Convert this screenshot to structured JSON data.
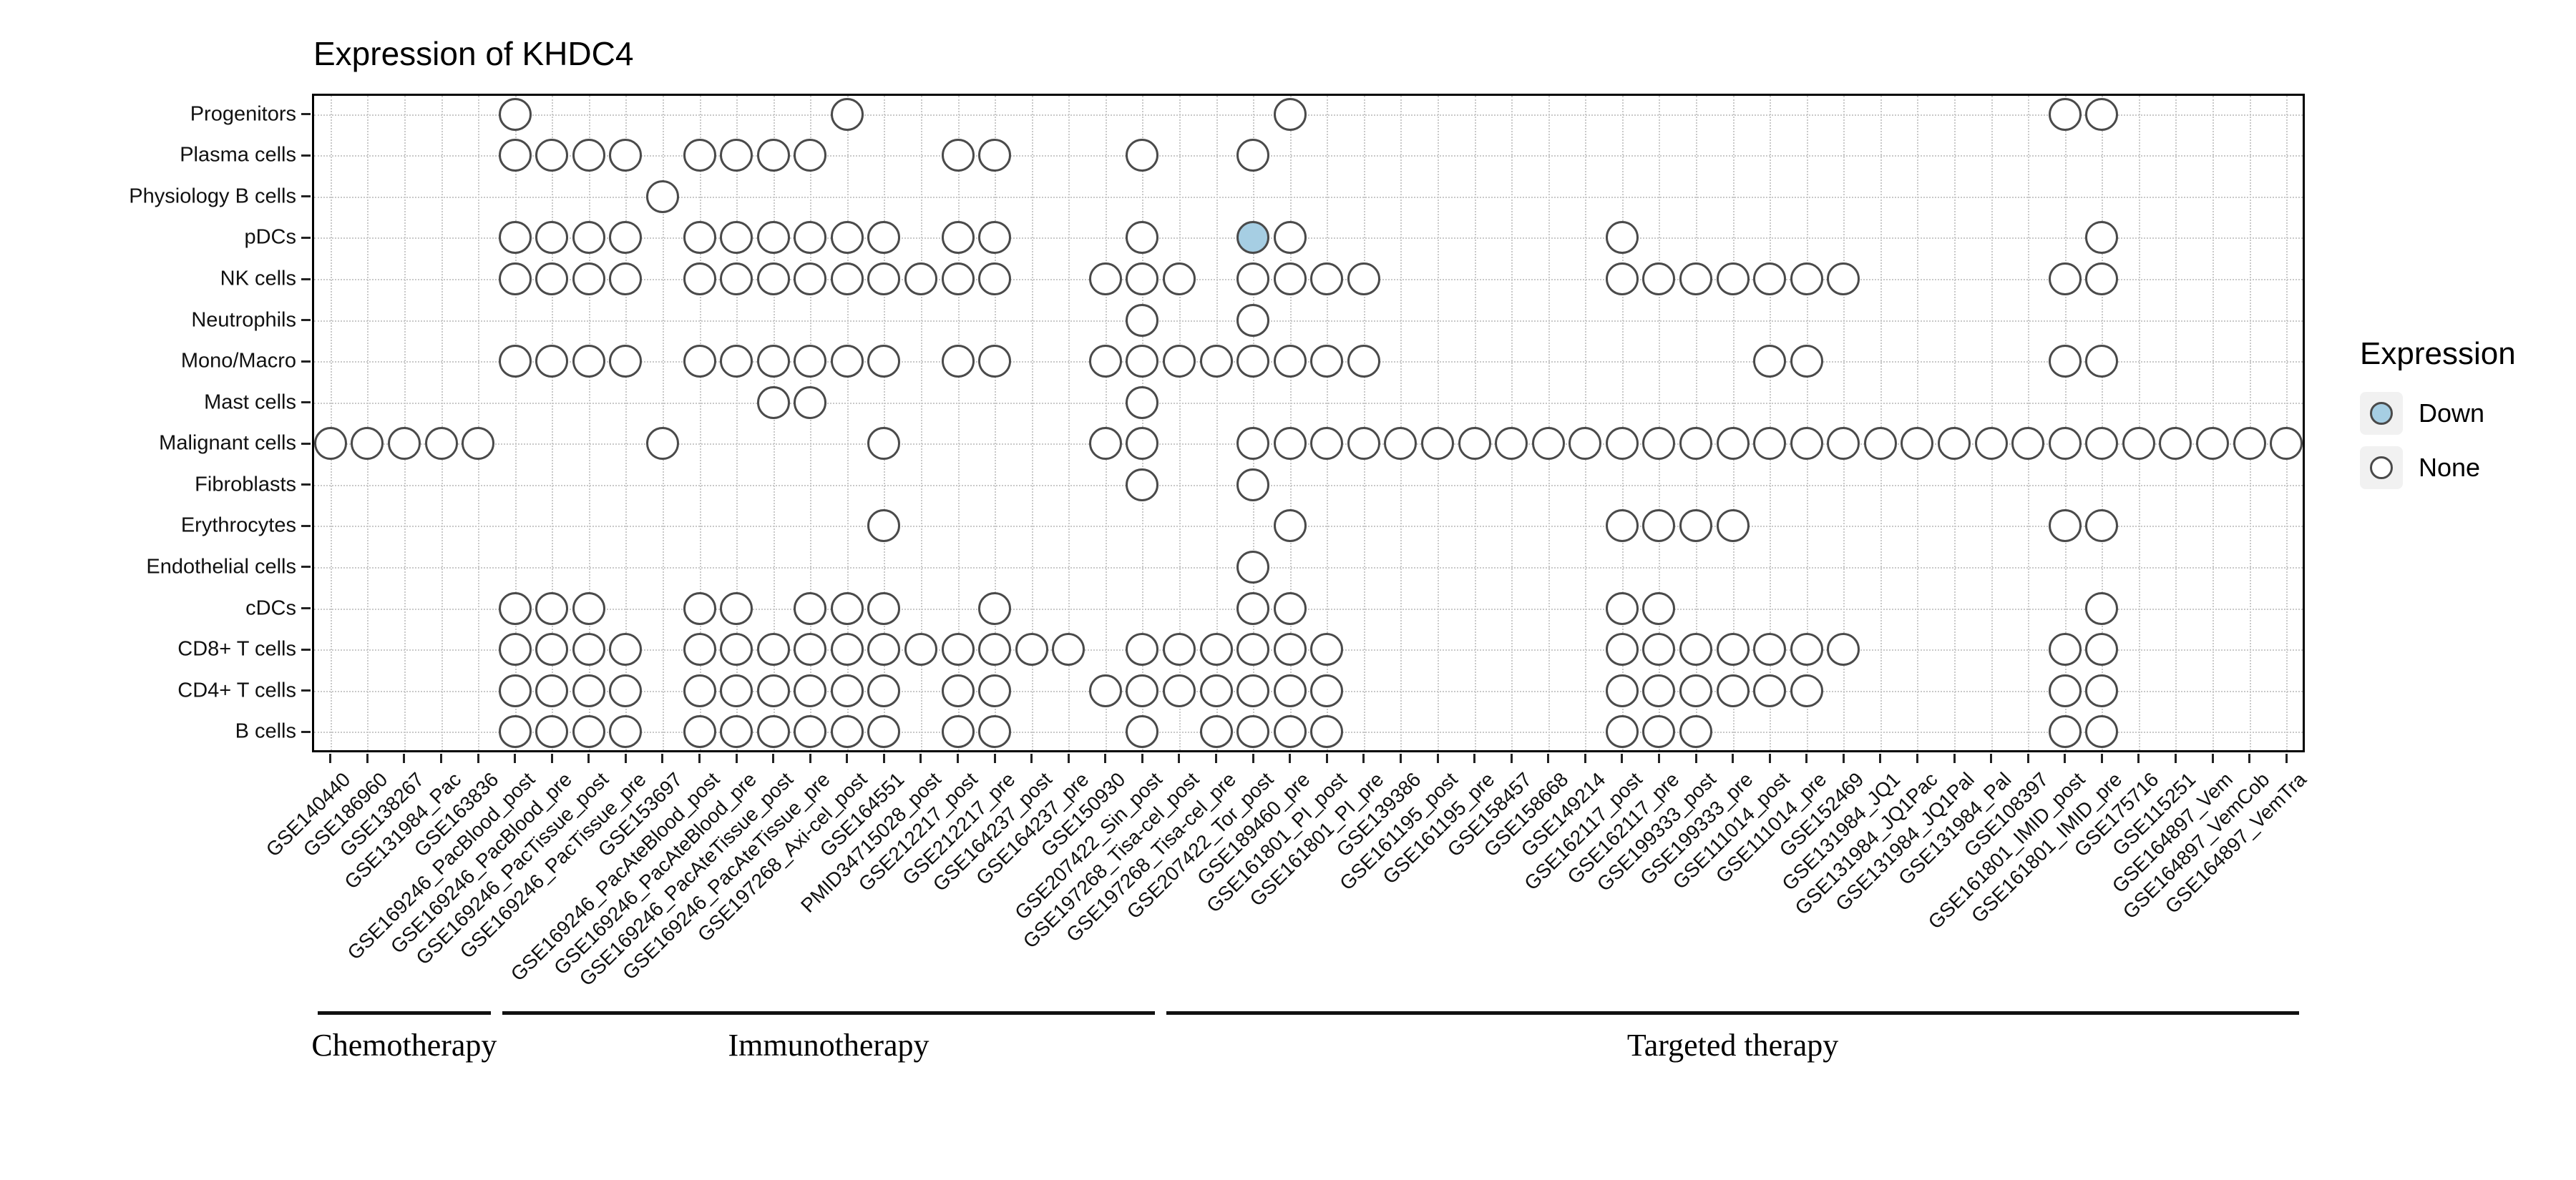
{
  "chart_data": {
    "type": "dot-matrix",
    "title": "Expression of KHDC4",
    "legend": {
      "title": "Expression",
      "items": [
        {
          "label": "Down",
          "color": "#a6cee3"
        },
        {
          "label": "None",
          "color": "#ffffff"
        }
      ]
    },
    "rows": [
      "Progenitors",
      "Plasma cells",
      "Physiology B cells",
      "pDCs",
      "NK cells",
      "Neutrophils",
      "Mono/Macro",
      "Mast cells",
      "Malignant cells",
      "Fibroblasts",
      "Erythrocytes",
      "Endothelial cells",
      "cDCs",
      "CD8+ T cells",
      "CD4+ T cells",
      "B cells"
    ],
    "columns": [
      "GSE140440",
      "GSE186960",
      "GSE138267",
      "GSE131984_Pac",
      "GSE163836",
      "GSE169246_PacBlood_post",
      "GSE169246_PacBlood_pre",
      "GSE169246_PacTissue_post",
      "GSE169246_PacTissue_pre",
      "GSE153697",
      "GSE169246_PacAteBlood_post",
      "GSE169246_PacAteBlood_pre",
      "GSE169246_PacAteTissue_post",
      "GSE169246_PacAteTissue_pre",
      "GSE197268_Axi-cel_post",
      "GSE164551",
      "PMID34715028_post",
      "GSE212217_post",
      "GSE212217_pre",
      "GSE164237_post",
      "GSE164237_pre",
      "GSE150930",
      "GSE207422_Sin_post",
      "GSE197268_Tisa-cel_post",
      "GSE197268_Tisa-cel_pre",
      "GSE207422_Tor_post",
      "GSE189460_pre",
      "GSE161801_PI_post",
      "GSE161801_PI_pre",
      "GSE139386",
      "GSE161195_post",
      "GSE161195_pre",
      "GSE158457",
      "GSE158668",
      "GSE149214",
      "GSE162117_post",
      "GSE162117_pre",
      "GSE199333_post",
      "GSE199333_pre",
      "GSE111014_post",
      "GSE111014_pre",
      "GSE152469",
      "GSE131984_JQ1",
      "GSE131984_JQ1Pac",
      "GSE131984_JQ1Pal",
      "GSE131984_Pal",
      "GSE108397",
      "GSE161801_IMID_post",
      "GSE161801_IMID_pre",
      "GSE175716",
      "GSE115251",
      "GSE164897_Vem",
      "GSE164897_VemCob",
      "GSE164897_VemTra"
    ],
    "groups": [
      {
        "label": "Chemotherapy",
        "col_start": 1,
        "col_end": 5
      },
      {
        "label": "Immunotherapy",
        "col_start": 6,
        "col_end": 23
      },
      {
        "label": "Targeted therapy",
        "col_start": 24,
        "col_end": 54
      }
    ],
    "cells": {
      "Progenitors": [
        6,
        15,
        27,
        48,
        49
      ],
      "Plasma cells": [
        6,
        7,
        8,
        9,
        11,
        12,
        13,
        14,
        18,
        19,
        23,
        26
      ],
      "Physiology B cells": [
        10
      ],
      "pDCs": [
        6,
        7,
        8,
        9,
        11,
        12,
        13,
        14,
        15,
        16,
        18,
        19,
        23,
        26,
        27,
        36,
        49
      ],
      "NK cells": [
        6,
        7,
        8,
        9,
        11,
        12,
        13,
        14,
        15,
        16,
        17,
        18,
        19,
        22,
        23,
        24,
        26,
        27,
        28,
        29,
        36,
        37,
        38,
        39,
        40,
        41,
        42,
        48,
        49
      ],
      "Neutrophils": [
        23,
        26
      ],
      "Mono/Macro": [
        6,
        7,
        8,
        9,
        11,
        12,
        13,
        14,
        15,
        16,
        18,
        19,
        22,
        23,
        24,
        25,
        26,
        27,
        28,
        29,
        40,
        41,
        48,
        49
      ],
      "Mast cells": [
        13,
        14,
        23
      ],
      "Malignant cells": [
        1,
        2,
        3,
        4,
        5,
        10,
        16,
        22,
        23,
        26,
        27,
        28,
        29,
        30,
        31,
        32,
        33,
        34,
        35,
        36,
        37,
        38,
        39,
        40,
        41,
        42,
        43,
        44,
        45,
        46,
        47,
        48,
        49,
        50,
        51,
        52,
        53,
        54
      ],
      "Fibroblasts": [
        23,
        26
      ],
      "Erythrocytes": [
        16,
        27,
        36,
        37,
        38,
        39,
        48,
        49
      ],
      "Endothelial cells": [
        26
      ],
      "cDCs": [
        6,
        7,
        8,
        11,
        12,
        14,
        15,
        16,
        19,
        26,
        27,
        36,
        37,
        49
      ],
      "CD8+ T cells": [
        6,
        7,
        8,
        9,
        11,
        12,
        13,
        14,
        15,
        16,
        17,
        18,
        19,
        20,
        21,
        23,
        24,
        25,
        26,
        27,
        28,
        36,
        37,
        38,
        39,
        40,
        41,
        42,
        48,
        49
      ],
      "CD4+ T cells": [
        6,
        7,
        8,
        9,
        11,
        12,
        13,
        14,
        15,
        16,
        18,
        19,
        22,
        23,
        24,
        25,
        26,
        27,
        28,
        36,
        37,
        38,
        39,
        40,
        41,
        48,
        49
      ],
      "B cells": [
        6,
        7,
        8,
        9,
        11,
        12,
        13,
        14,
        15,
        16,
        18,
        19,
        23,
        25,
        26,
        27,
        28,
        36,
        37,
        38,
        48,
        49
      ]
    },
    "down_cells": [
      {
        "row": "pDCs",
        "col": 26
      }
    ]
  }
}
